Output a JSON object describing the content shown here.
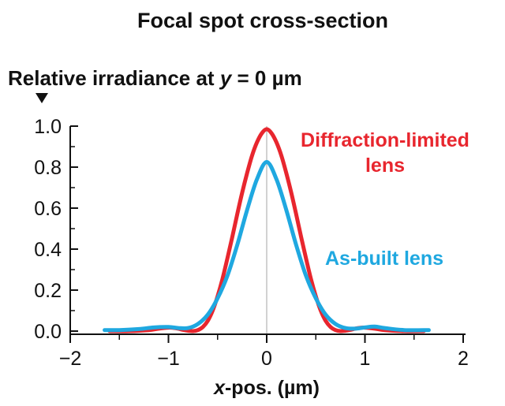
{
  "chart_data": {
    "type": "line",
    "title": "Focal spot cross-section",
    "ylabel_prefix": "Relative irradiance at ",
    "ylabel_var": "y",
    "ylabel_suffix": " = 0 µm",
    "xlabel_var": "x",
    "xlabel_suffix": "-pos. (µm)",
    "xlim": [
      -2,
      2
    ],
    "ylim": [
      0,
      1.0
    ],
    "xticks": [
      -2,
      -1,
      0,
      1,
      2
    ],
    "xtick_labels": [
      "−2",
      "−1",
      "0",
      "1",
      "2"
    ],
    "yticks": [
      0.0,
      0.2,
      0.4,
      0.6,
      0.8,
      1.0
    ],
    "ytick_labels": [
      "0.0",
      "0.2",
      "0.4",
      "0.6",
      "0.8",
      "1.0"
    ],
    "grid": false,
    "series": [
      {
        "name_lines": [
          "Diffraction-limited",
          "lens"
        ],
        "color": "#e8262e",
        "x": [
          -1.6,
          -1.4,
          -1.2,
          -1.1,
          -1.0,
          -0.95,
          -0.9,
          -0.85,
          -0.8,
          -0.75,
          -0.7,
          -0.65,
          -0.6,
          -0.55,
          -0.5,
          -0.45,
          -0.4,
          -0.35,
          -0.3,
          -0.25,
          -0.2,
          -0.15,
          -0.1,
          -0.05,
          0.0,
          0.05,
          0.1,
          0.15,
          0.2,
          0.25,
          0.3,
          0.35,
          0.4,
          0.45,
          0.5,
          0.55,
          0.6,
          0.65,
          0.7,
          0.75,
          0.8,
          0.85,
          0.9,
          0.95,
          1.0,
          1.1,
          1.2,
          1.4,
          1.6
        ],
        "y": [
          0.0,
          0.0,
          0.005,
          0.012,
          0.017,
          0.016,
          0.012,
          0.006,
          0.002,
          0.0,
          0.005,
          0.02,
          0.05,
          0.1,
          0.17,
          0.255,
          0.355,
          0.46,
          0.57,
          0.675,
          0.77,
          0.855,
          0.92,
          0.965,
          0.985,
          0.965,
          0.92,
          0.855,
          0.77,
          0.675,
          0.57,
          0.46,
          0.355,
          0.255,
          0.17,
          0.1,
          0.05,
          0.02,
          0.005,
          0.0,
          0.002,
          0.006,
          0.012,
          0.016,
          0.017,
          0.012,
          0.005,
          0.0,
          0.0
        ]
      },
      {
        "name_lines": [
          "As-built lens"
        ],
        "color": "#1fa8e0",
        "x": [
          -1.65,
          -1.5,
          -1.3,
          -1.15,
          -1.0,
          -0.9,
          -0.8,
          -0.7,
          -0.6,
          -0.5,
          -0.4,
          -0.3,
          -0.2,
          -0.1,
          0.0,
          0.1,
          0.2,
          0.3,
          0.4,
          0.5,
          0.6,
          0.7,
          0.8,
          0.9,
          1.0,
          1.1,
          1.2,
          1.4,
          1.65
        ],
        "y": [
          0.005,
          0.005,
          0.01,
          0.018,
          0.02,
          0.015,
          0.015,
          0.035,
          0.08,
          0.16,
          0.27,
          0.42,
          0.59,
          0.74,
          0.825,
          0.74,
          0.59,
          0.42,
          0.27,
          0.16,
          0.08,
          0.035,
          0.015,
          0.012,
          0.018,
          0.022,
          0.015,
          0.005,
          0.005
        ]
      }
    ]
  }
}
